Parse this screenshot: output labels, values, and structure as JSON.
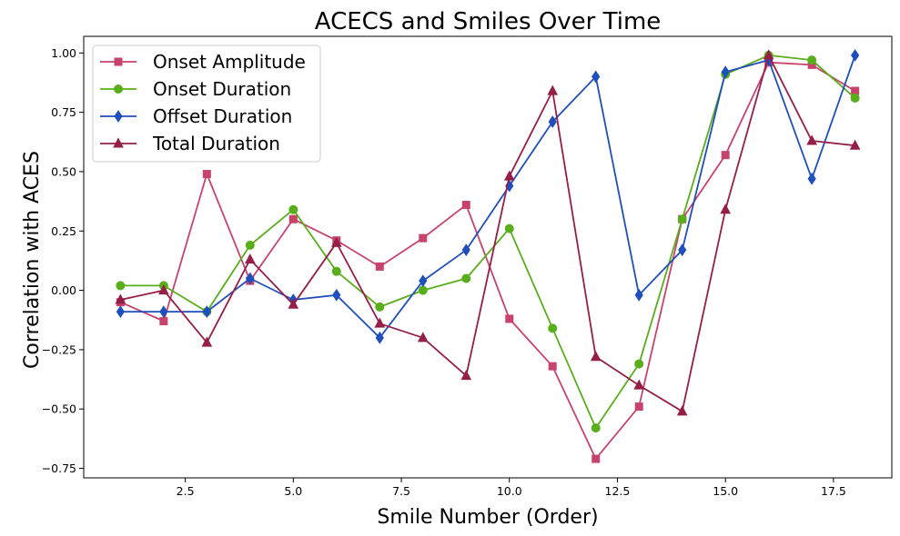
{
  "chart_data": {
    "type": "line",
    "title": "ACECS and Smiles Over Time",
    "xlabel": "Smile Number (Order)",
    "ylabel": "Correlation with ACES",
    "xlim": [
      0.15,
      18.85
    ],
    "ylim": [
      -0.79,
      1.07
    ],
    "xticks": [
      2.5,
      5.0,
      7.5,
      10.0,
      12.5,
      15.0,
      17.5
    ],
    "xtick_labels": [
      "2.5",
      "5.0",
      "7.5",
      "10.0",
      "12.5",
      "15.0",
      "17.5"
    ],
    "yticks": [
      -0.75,
      -0.5,
      -0.25,
      0.0,
      0.25,
      0.5,
      0.75,
      1.0
    ],
    "ytick_labels": [
      "−0.75",
      "−0.50",
      "−0.25",
      "0.00",
      "0.25",
      "0.50",
      "0.75",
      "1.00"
    ],
    "grid": false,
    "legend_position": "top-left",
    "x": [
      1,
      2,
      3,
      4,
      5,
      6,
      7,
      8,
      9,
      10,
      11,
      12,
      13,
      14,
      15,
      16,
      17,
      18
    ],
    "series": [
      {
        "name": "Onset Amplitude",
        "color": "#c8436b",
        "marker": "square",
        "values": [
          -0.05,
          -0.13,
          0.49,
          0.04,
          0.3,
          0.21,
          0.1,
          0.22,
          0.36,
          -0.12,
          -0.32,
          -0.71,
          -0.49,
          0.3,
          0.57,
          0.96,
          0.95,
          0.84
        ]
      },
      {
        "name": "Onset Duration",
        "color": "#59ae1b",
        "marker": "circle",
        "values": [
          0.02,
          0.02,
          -0.09,
          0.19,
          0.34,
          0.08,
          -0.07,
          0.0,
          0.05,
          0.26,
          -0.16,
          -0.58,
          -0.31,
          0.3,
          0.91,
          0.99,
          0.97,
          0.81
        ]
      },
      {
        "name": "Offset Duration",
        "color": "#1f4fbd",
        "marker": "diamond",
        "values": [
          -0.09,
          -0.09,
          -0.09,
          0.05,
          -0.04,
          -0.02,
          -0.2,
          0.04,
          0.17,
          0.44,
          0.71,
          0.9,
          -0.02,
          0.17,
          0.92,
          0.97,
          0.47,
          0.99
        ]
      },
      {
        "name": "Total Duration",
        "color": "#951f47",
        "marker": "triangle",
        "values": [
          -0.04,
          0.0,
          -0.22,
          0.13,
          -0.06,
          0.2,
          -0.14,
          -0.2,
          -0.36,
          0.48,
          0.84,
          -0.28,
          -0.4,
          -0.51,
          0.34,
          0.99,
          0.63,
          0.61
        ]
      }
    ]
  }
}
